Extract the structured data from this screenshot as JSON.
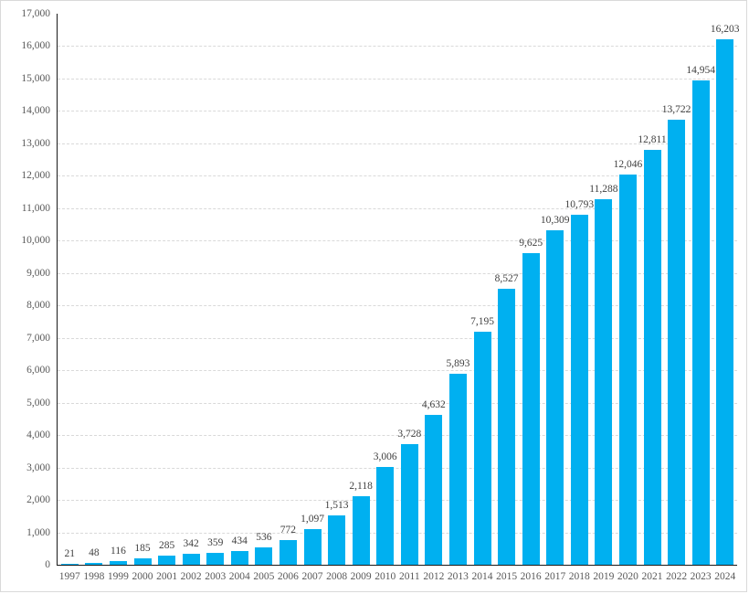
{
  "chart_data": {
    "type": "bar",
    "title": "",
    "xlabel": "",
    "ylabel": "",
    "legend": "none",
    "grid": "horizontal-dashed",
    "categories": [
      "1997",
      "1998",
      "1999",
      "2000",
      "2001",
      "2002",
      "2003",
      "2004",
      "2005",
      "2006",
      "2007",
      "2008",
      "2009",
      "2010",
      "2011",
      "2012",
      "2013",
      "2014",
      "2015",
      "2016",
      "2017",
      "2018",
      "2019",
      "2020",
      "2021",
      "2022",
      "2023",
      "2024"
    ],
    "values": [
      21,
      48,
      116,
      185,
      285,
      342,
      359,
      434,
      536,
      772,
      1097,
      1513,
      2118,
      3006,
      3728,
      4632,
      5893,
      7195,
      8527,
      9625,
      10309,
      10793,
      11288,
      12046,
      12811,
      13722,
      14954,
      16203
    ],
    "value_labels": [
      "21",
      "48",
      "116",
      "185",
      "285",
      "342",
      "359",
      "434",
      "536",
      "772",
      "1,097",
      "1,513",
      "2,118",
      "3,006",
      "3,728",
      "4,632",
      "5,893",
      "7,195",
      "8,527",
      "9,625",
      "10,309",
      "10,793",
      "11,288",
      "12,046",
      "12,811",
      "13,722",
      "14,954",
      "16,203"
    ],
    "y_tick_labels": [
      "0",
      "1,000",
      "2,000",
      "3,000",
      "4,000",
      "5,000",
      "6,000",
      "7,000",
      "8,000",
      "9,000",
      "10,000",
      "11,000",
      "12,000",
      "13,000",
      "14,000",
      "15,000",
      "16,000",
      "17,000"
    ],
    "ylim": [
      0,
      17000
    ],
    "y_tick_step": 1000,
    "colors": {
      "bar": "#00b0f0",
      "gridline": "#d9d9d9",
      "axis_line": "#1a1a1a",
      "tick_label": "#595959",
      "data_label": "#404040",
      "frame_border": "#d9d9d9",
      "background": "#ffffff"
    }
  }
}
